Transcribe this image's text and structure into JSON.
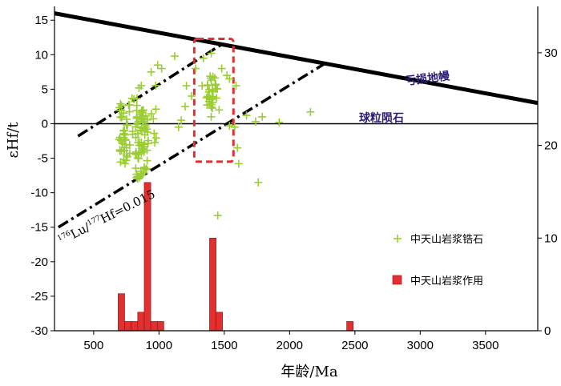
{
  "chart_data": {
    "type": "scatter",
    "xlabel": "年龄/Ma",
    "ylabel": "εHf/t",
    "xlim": [
      200,
      3900
    ],
    "ylim": [
      -30,
      17
    ],
    "y2lim": [
      0,
      35
    ],
    "xticks": [
      500,
      1000,
      1500,
      2000,
      2500,
      3000,
      3500
    ],
    "yticks": [
      15,
      10,
      5,
      0,
      -5,
      -10,
      -15,
      -20,
      -25,
      -30
    ],
    "y2ticks": [
      0,
      10,
      20,
      30
    ],
    "grid": false,
    "legend_position": "lower-right",
    "colors": {
      "zircon": "#9acd32",
      "histogram": "#e03030",
      "box": "#e03030",
      "text_purple": "#2a1d7a"
    },
    "reference_lines": [
      {
        "label": "亏损地幔",
        "x": [
          200,
          3900
        ],
        "y": [
          16.0,
          3.0
        ],
        "style": "solid"
      },
      {
        "label": "球粒陨石",
        "x": [
          200,
          3900
        ],
        "y": [
          0,
          0
        ],
        "style": "solid-thin"
      },
      {
        "label": "",
        "x": [
          380,
          1480
        ],
        "y": [
          -1.8,
          11.5
        ],
        "style": "dashdot"
      },
      {
        "label": "",
        "x": [
          230,
          2260
        ],
        "y": [
          -15.0,
          8.6
        ],
        "style": "dashdot"
      }
    ],
    "trend_label": {
      "pre": "176",
      "a": "Lu/",
      "mid": "177",
      "b": "Hf=0.015"
    },
    "highlight_box": {
      "x": [
        1270,
        1570
      ],
      "y": [
        -5.5,
        12.3
      ]
    },
    "series": [
      {
        "name": "中天山岩浆锆石",
        "type": "scatter",
        "marker": "+",
        "clusters": [
          {
            "x_range": [
              690,
              780
            ],
            "y_range": [
              -6,
              3
            ],
            "count": 45
          },
          {
            "x_range": [
              820,
              920
            ],
            "y_range": [
              -8,
              2
            ],
            "count": 60
          },
          {
            "x_range": [
              780,
              1000
            ],
            "y_range": [
              -3,
              6
            ],
            "count": 25
          },
          {
            "x_range": [
              1360,
              1450
            ],
            "y_range": [
              2,
              7
            ],
            "count": 30
          }
        ],
        "points": [
          [
            940,
            7.5
          ],
          [
            990,
            8.5
          ],
          [
            1020,
            8.0
          ],
          [
            1120,
            9.8
          ],
          [
            1210,
            5.5
          ],
          [
            1250,
            4.0
          ],
          [
            1200,
            2.5
          ],
          [
            1280,
            8.0
          ],
          [
            1330,
            5.5
          ],
          [
            1340,
            9.5
          ],
          [
            1400,
            10.2
          ],
          [
            1480,
            8.0
          ],
          [
            1520,
            7.0
          ],
          [
            1540,
            6.5
          ],
          [
            1590,
            5.5
          ],
          [
            1400,
            1.0
          ],
          [
            1460,
            2.0
          ],
          [
            1540,
            -0.3
          ],
          [
            1580,
            -0.5
          ],
          [
            1600,
            -3.5
          ],
          [
            1610,
            -5.8
          ],
          [
            1670,
            1.2
          ],
          [
            1740,
            0.3
          ],
          [
            1790,
            1.0
          ],
          [
            1920,
            0.2
          ],
          [
            2160,
            1.7
          ],
          [
            1760,
            -8.5
          ],
          [
            1450,
            -13.3
          ],
          [
            1150,
            -0.5
          ],
          [
            1170,
            0.5
          ]
        ]
      },
      {
        "name": "中天山岩浆作用",
        "type": "bar",
        "axis": "right",
        "bins": [
          {
            "x": 712,
            "h": 4
          },
          {
            "x": 762,
            "h": 1
          },
          {
            "x": 812,
            "h": 1
          },
          {
            "x": 862,
            "h": 2
          },
          {
            "x": 912,
            "h": 16
          },
          {
            "x": 962,
            "h": 1
          },
          {
            "x": 1012,
            "h": 1
          },
          {
            "x": 1412,
            "h": 10
          },
          {
            "x": 1462,
            "h": 2
          },
          {
            "x": 2462,
            "h": 1
          }
        ],
        "bin_width": 50
      }
    ]
  }
}
